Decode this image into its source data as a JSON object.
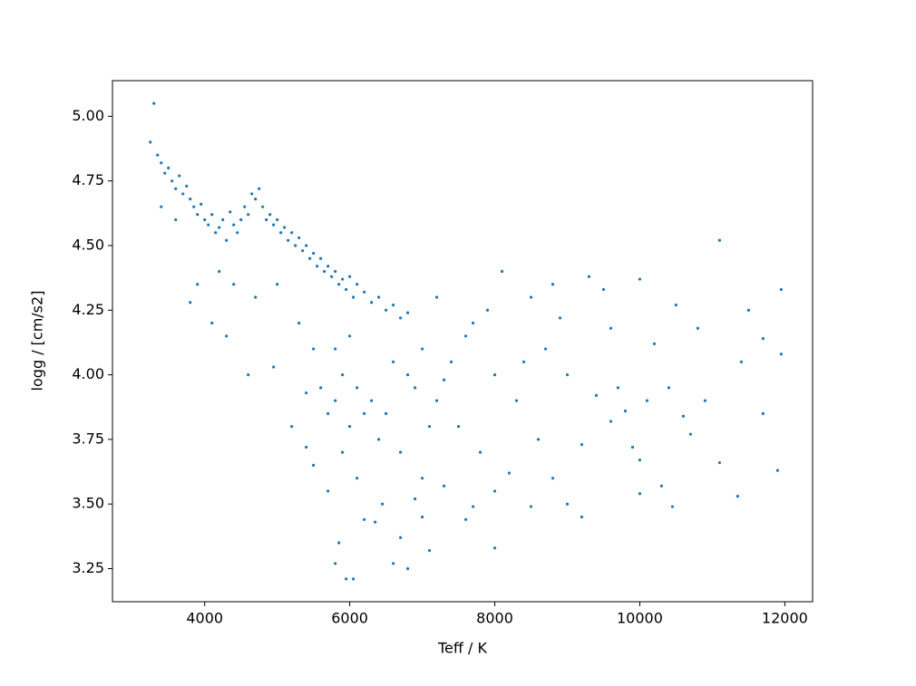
{
  "chart_data": {
    "type": "scatter",
    "x_label": "Teff / K",
    "y_label": "logg / [cm/s2]",
    "xlim": [
      2728,
      12383
    ],
    "ylim": [
      3.122,
      5.138
    ],
    "xticks": [
      4000,
      6000,
      8000,
      10000,
      12000
    ],
    "yticks": [
      {
        "value": 3.25,
        "label": "3.25"
      },
      {
        "value": 3.5,
        "label": "3.50"
      },
      {
        "value": 3.75,
        "label": "3.75"
      },
      {
        "value": 4.0,
        "label": "4.00"
      },
      {
        "value": 4.25,
        "label": "4.25"
      },
      {
        "value": 4.5,
        "label": "4.50"
      },
      {
        "value": 4.75,
        "label": "4.75"
      },
      {
        "value": 5.0,
        "label": "5.00"
      }
    ],
    "grid": false,
    "series": [
      {
        "color": "#1f77b4",
        "x": [
          3250,
          3300,
          3350,
          3400,
          3450,
          3500,
          3550,
          3600,
          3650,
          3700,
          3750,
          3800,
          3850,
          3900,
          3950,
          4000,
          4050,
          4100,
          4150,
          4200,
          4250,
          4300,
          4350,
          4400,
          4450,
          4500,
          4550,
          4600,
          4650,
          4700,
          4750,
          4800,
          4850,
          4900,
          4950,
          5000,
          5050,
          5100,
          5150,
          5200,
          5250,
          5300,
          5350,
          5400,
          5450,
          5500,
          5550,
          5600,
          5650,
          5700,
          5750,
          5800,
          5850,
          5900,
          5950,
          6000,
          6050,
          6100,
          6200,
          6300,
          6400,
          6500,
          6600,
          6700,
          6800,
          3800,
          3900,
          4100,
          4300,
          4400,
          4600,
          4950,
          3400,
          3600,
          4200,
          4700,
          5000,
          5300,
          5500,
          5600,
          5700,
          5800,
          5900,
          6000,
          6100,
          6200,
          6300,
          6400,
          5400,
          5200,
          5800,
          6000,
          5900,
          6100,
          5700,
          5850,
          5800,
          5950,
          6050,
          6200,
          6350,
          6450,
          6600,
          6800,
          6700,
          6900,
          7000,
          5500,
          5400,
          6800,
          7000,
          7200,
          7400,
          7500,
          7700,
          7800,
          8000,
          8100,
          8300,
          8500,
          8600,
          8800,
          9000,
          9200,
          9400,
          9600,
          9800,
          10000,
          10200,
          10400,
          10600,
          10800,
          11100,
          11100,
          11350,
          11400,
          11700,
          11950,
          11900,
          11950,
          11500,
          10000,
          10450,
          9000,
          8500,
          8000,
          7600,
          7300,
          7100,
          7000,
          7700,
          8200,
          8800,
          9200,
          9600,
          9900,
          10300,
          10700,
          7200,
          7600,
          8000,
          8400,
          8900,
          9300,
          9700,
          10100,
          10500,
          10900,
          11700,
          7900,
          8700,
          9500,
          10000,
          6500,
          6700,
          6900,
          7100,
          7300,
          6600
        ],
        "y": [
          4.9,
          5.05,
          4.85,
          4.82,
          4.78,
          4.8,
          4.75,
          4.72,
          4.77,
          4.7,
          4.73,
          4.68,
          4.65,
          4.62,
          4.66,
          4.6,
          4.58,
          4.62,
          4.55,
          4.57,
          4.6,
          4.52,
          4.63,
          4.58,
          4.55,
          4.6,
          4.65,
          4.62,
          4.7,
          4.68,
          4.72,
          4.65,
          4.6,
          4.62,
          4.58,
          4.6,
          4.55,
          4.57,
          4.52,
          4.55,
          4.5,
          4.53,
          4.48,
          4.5,
          4.45,
          4.47,
          4.42,
          4.45,
          4.4,
          4.42,
          4.38,
          4.4,
          4.35,
          4.37,
          4.33,
          4.38,
          4.3,
          4.35,
          4.32,
          4.28,
          4.3,
          4.25,
          4.27,
          4.22,
          4.24,
          4.28,
          4.35,
          4.2,
          4.15,
          4.35,
          4.0,
          4.03,
          4.65,
          4.6,
          4.4,
          4.3,
          4.35,
          4.2,
          4.1,
          3.95,
          3.85,
          3.9,
          4.0,
          3.8,
          3.95,
          3.85,
          3.9,
          3.75,
          3.93,
          3.8,
          4.1,
          4.15,
          3.7,
          3.6,
          3.55,
          3.35,
          3.27,
          3.21,
          3.21,
          3.44,
          3.43,
          3.5,
          3.27,
          3.25,
          3.37,
          3.52,
          3.45,
          3.65,
          3.72,
          4.0,
          4.1,
          3.9,
          4.05,
          3.8,
          4.2,
          3.7,
          4.0,
          4.4,
          3.9,
          4.3,
          3.75,
          4.35,
          4.0,
          3.73,
          3.92,
          4.18,
          3.86,
          4.37,
          4.12,
          3.95,
          3.84,
          4.18,
          4.52,
          3.66,
          3.53,
          4.05,
          3.85,
          4.33,
          3.63,
          4.08,
          4.25,
          3.54,
          3.49,
          3.5,
          3.49,
          3.33,
          3.44,
          3.57,
          3.32,
          3.6,
          3.49,
          3.62,
          3.6,
          3.45,
          3.82,
          3.72,
          3.57,
          3.77,
          4.3,
          4.15,
          3.55,
          4.05,
          4.22,
          4.38,
          3.95,
          3.9,
          4.27,
          3.9,
          4.14,
          4.25,
          4.1,
          4.33,
          3.67,
          3.85,
          3.7,
          3.95,
          3.8,
          3.98,
          4.05
        ]
      }
    ]
  }
}
